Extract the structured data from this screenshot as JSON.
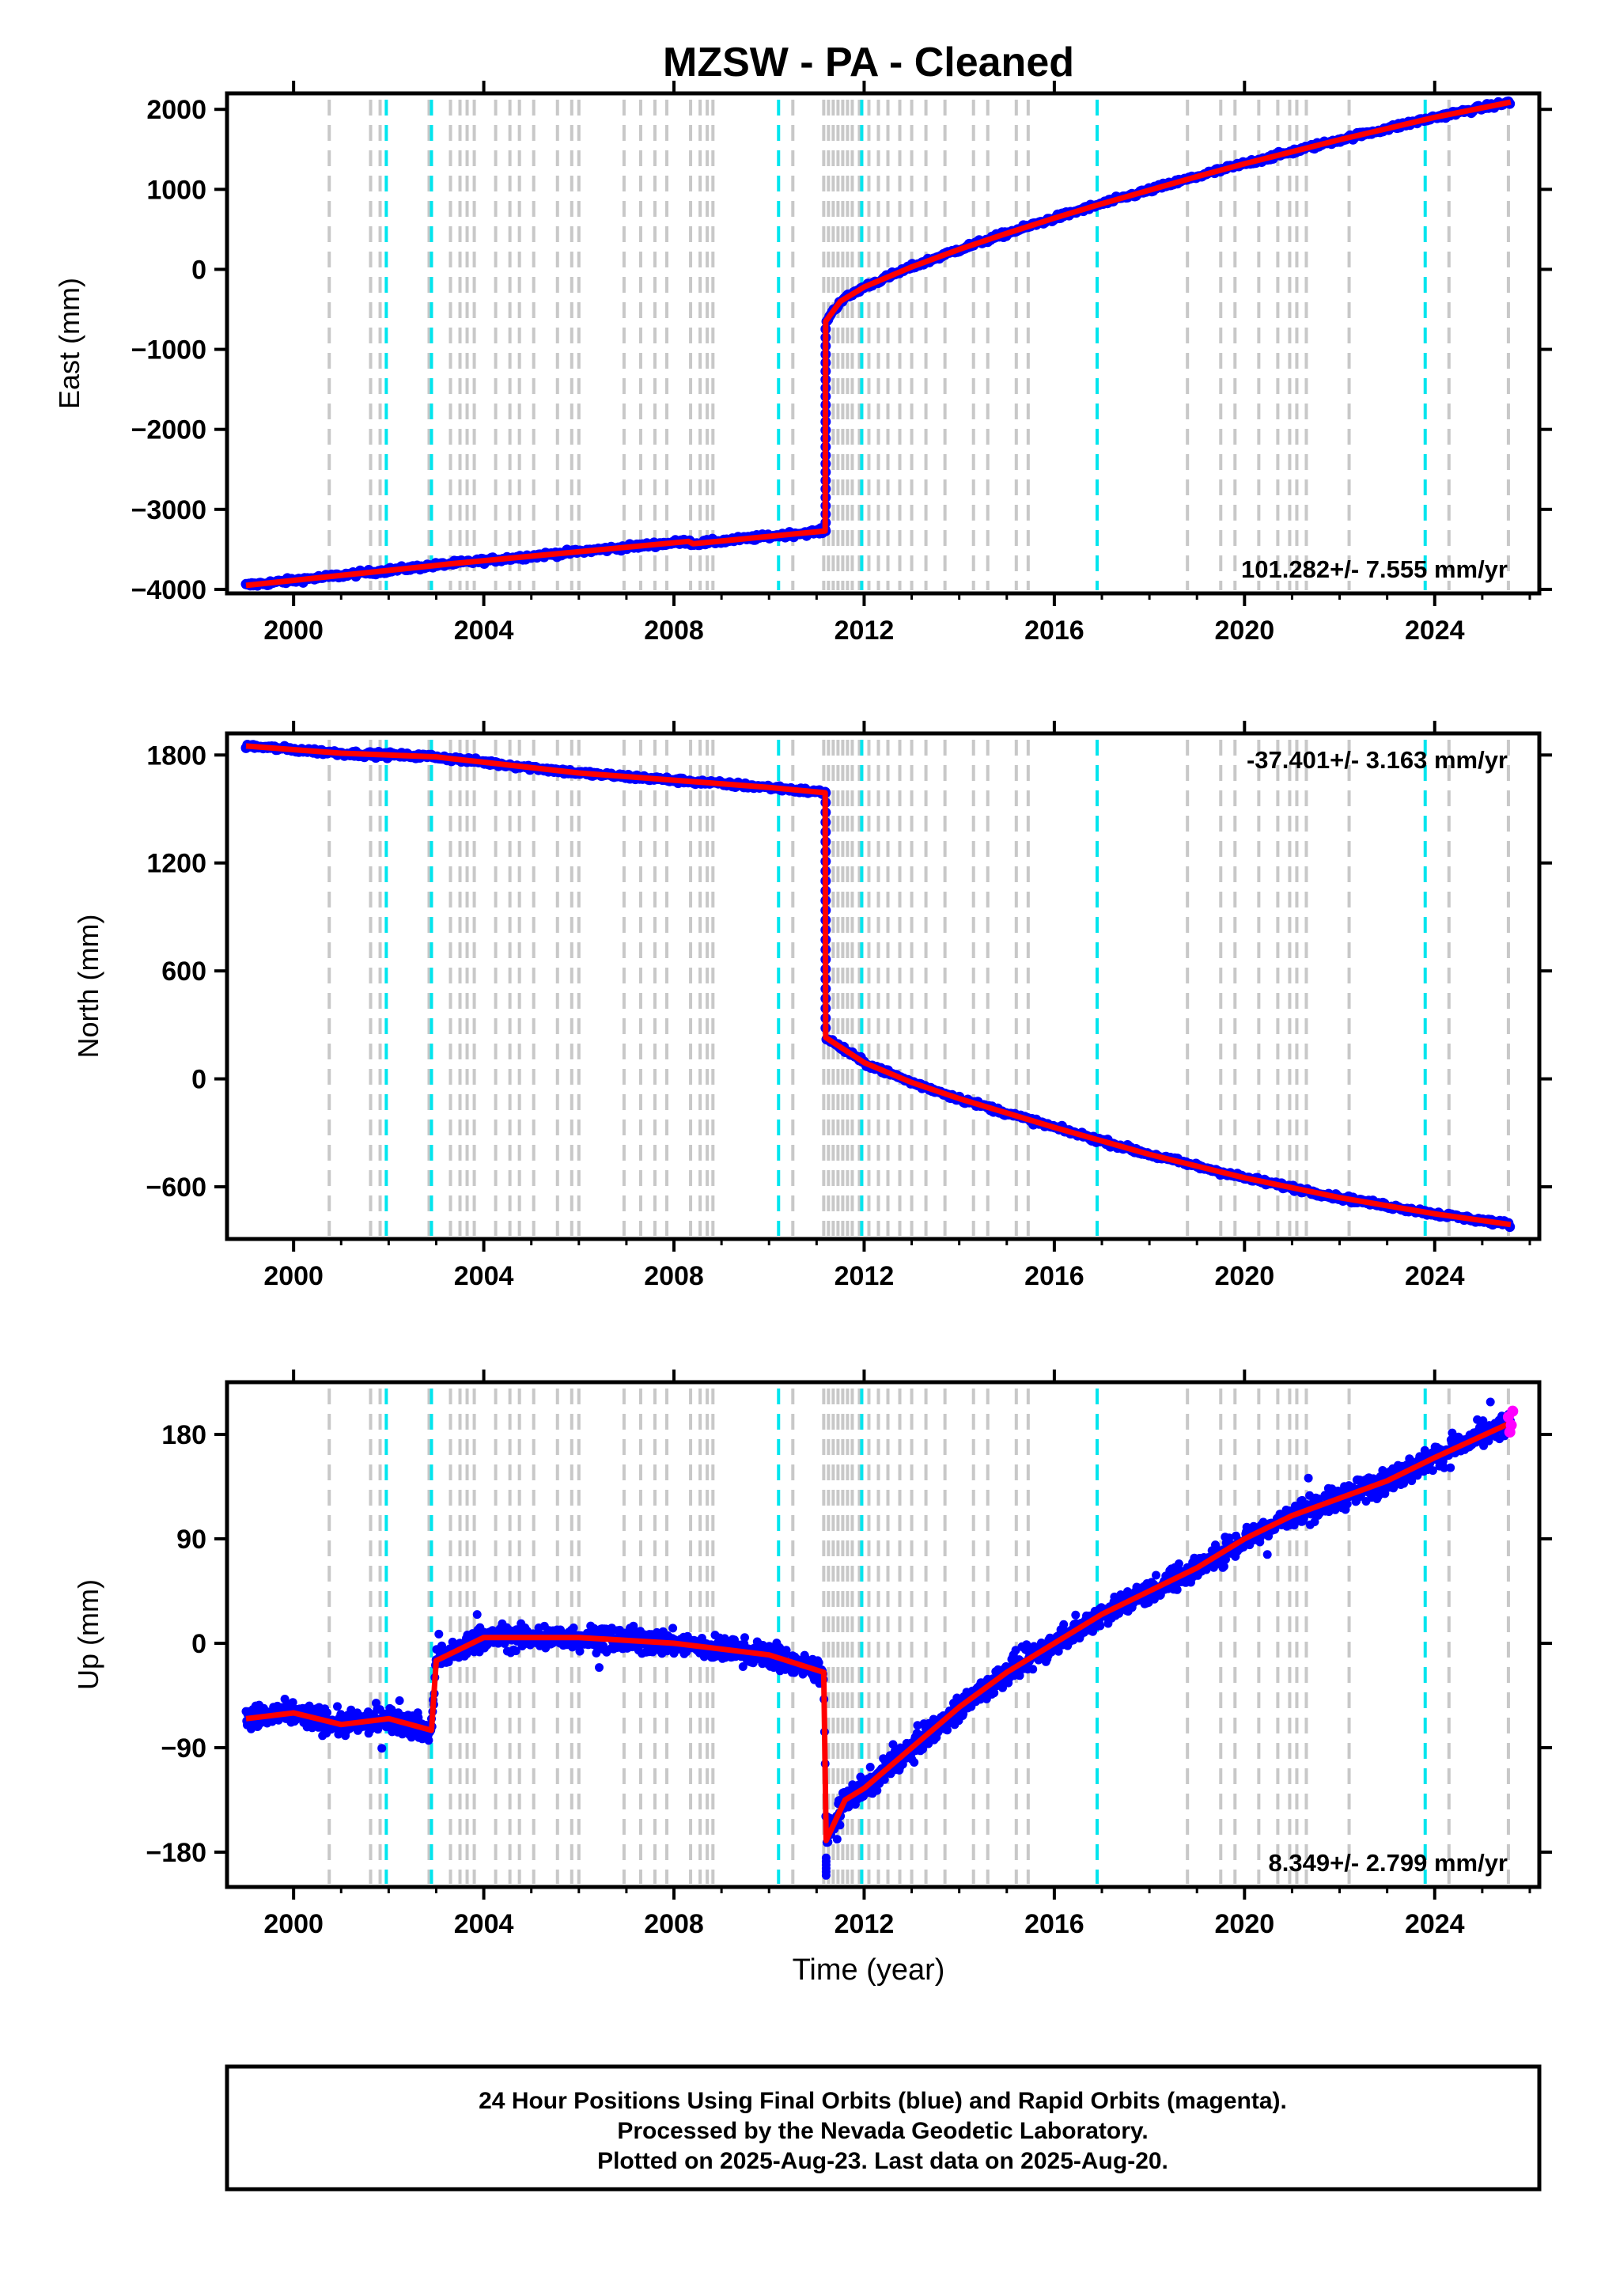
{
  "title": "MZSW  - PA - Cleaned",
  "xlabel": "Time (year)",
  "xlim": [
    1998.6,
    2026.2
  ],
  "x_ticks": [
    2000,
    2004,
    2008,
    2012,
    2016,
    2020,
    2024
  ],
  "x_tick_labels": [
    "2000",
    "2004",
    "2008",
    "2012",
    "2016",
    "2020",
    "2024"
  ],
  "colors": {
    "final_orbits": "#0000ff",
    "rapid_orbits": "#ff00ff",
    "model": "#ff0000",
    "equipment_change": "#c8c8c8",
    "earthquake": "#00e5ee",
    "frame": "#000000"
  },
  "event_lines": {
    "gray": [
      2000.75,
      2001.62,
      2001.82,
      2002.85,
      2003.3,
      2003.5,
      2003.65,
      2003.8,
      2004.25,
      2004.55,
      2004.75,
      2005.05,
      2005.55,
      2005.85,
      2006.0,
      2006.95,
      2007.3,
      2007.6,
      2007.85,
      2008.35,
      2008.55,
      2008.7,
      2008.82,
      2010.5,
      2011.15,
      2011.25,
      2011.35,
      2011.45,
      2011.55,
      2011.65,
      2011.75,
      2011.9,
      2012.1,
      2012.3,
      2012.5,
      2012.75,
      2013.0,
      2013.3,
      2013.7,
      2014.3,
      2014.6,
      2015.2,
      2015.45,
      2018.8,
      2019.5,
      2019.8,
      2020.3,
      2020.7,
      2020.95,
      2021.1,
      2021.3,
      2022.2,
      2024.3,
      2025.55
    ],
    "cyan": [
      2001.95,
      2002.9,
      2010.2,
      2011.95,
      2016.9,
      2023.8
    ]
  },
  "panels": [
    {
      "id": "east",
      "ylabel": "East (mm)",
      "ylim": [
        -4050,
        2200
      ],
      "y_ticks": [
        -4000,
        -3000,
        -2000,
        -1000,
        0,
        1000,
        2000
      ],
      "y_tick_labels": [
        "−4000",
        "−3000",
        "−2000",
        "−1000",
        "0",
        "1000",
        "2000"
      ],
      "rate_text": "101.282+/- 7.555 mm/yr",
      "rate_position": "bottom-right"
    },
    {
      "id": "north",
      "ylabel": "North (mm)",
      "ylim": [
        -890,
        1920
      ],
      "y_ticks": [
        -600,
        0,
        600,
        1200,
        1800
      ],
      "y_tick_labels": [
        "−600",
        "0",
        "600",
        "1200",
        "1800"
      ],
      "rate_text": "-37.401+/- 3.163 mm/yr",
      "rate_position": "top-right"
    },
    {
      "id": "up",
      "ylabel": "Up (mm)",
      "ylim": [
        -210,
        225
      ],
      "y_ticks": [
        -180,
        -90,
        0,
        90,
        180
      ],
      "y_tick_labels": [
        "−180",
        "−90",
        "0",
        "90",
        "180"
      ],
      "rate_text": "8.349+/- 2.799 mm/yr",
      "rate_position": "bottom-right"
    }
  ],
  "chart_data": {
    "type": "scatter",
    "title": "MZSW  - PA - Cleaned",
    "xlabel": "Time (year)",
    "legend": "none",
    "grid": false,
    "series": [
      {
        "panel": "East (mm)",
        "description": "trend model (red)",
        "x": [
          1999.0,
          2003.0,
          2003.3,
          2008.3,
          2008.4,
          2011.18,
          2011.19,
          2011.5,
          2012.0,
          2013.0,
          2014.0,
          2015.0,
          2016.0,
          2017.0,
          2018.0,
          2019.0,
          2020.0,
          2021.0,
          2022.0,
          2023.0,
          2024.0,
          2025.6
        ],
        "y": [
          -3950,
          -3700,
          -3680,
          -3400,
          -3430,
          -3270,
          -650,
          -400,
          -220,
          30,
          250,
          450,
          640,
          820,
          990,
          1160,
          1320,
          1470,
          1620,
          1760,
          1900,
          2090
        ]
      },
      {
        "panel": "North (mm)",
        "description": "trend model (red)",
        "x": [
          1999.0,
          2000.0,
          2001.0,
          2002.0,
          2003.0,
          2003.3,
          2004.0,
          2006.0,
          2008.0,
          2010.0,
          2011.18,
          2011.19,
          2012.0,
          2013.0,
          2014.0,
          2016.0,
          2018.0,
          2020.0,
          2022.0,
          2024.0,
          2025.6
        ],
        "y": [
          1850,
          1830,
          1810,
          1800,
          1790,
          1780,
          1760,
          1700,
          1660,
          1620,
          1590,
          230,
          90,
          -20,
          -110,
          -270,
          -420,
          -550,
          -660,
          -750,
          -810
        ]
      },
      {
        "panel": "Up (mm)",
        "description": "smoothed model (red)",
        "x": [
          1999.0,
          2000.0,
          2001.0,
          2002.0,
          2002.9,
          2003.0,
          2004.0,
          2006.0,
          2008.0,
          2010.0,
          2011.15,
          2011.2,
          2011.6,
          2012.0,
          2013.0,
          2014.0,
          2015.0,
          2016.0,
          2017.0,
          2018.0,
          2019.0,
          2020.0,
          2021.0,
          2022.0,
          2023.0,
          2024.0,
          2025.6
        ],
        "y": [
          -65,
          -60,
          -70,
          -65,
          -75,
          -15,
          5,
          5,
          0,
          -10,
          -25,
          -170,
          -135,
          -125,
          -90,
          -55,
          -25,
          0,
          25,
          45,
          65,
          90,
          110,
          125,
          140,
          160,
          190
        ]
      },
      {
        "panel": "Up (mm)",
        "description": "24 hour positions, final orbits (blue)",
        "x": [
          1999.0,
          2000.0,
          2001.0,
          2002.0,
          2002.9,
          2003.0,
          2004.0,
          2006.0,
          2008.0,
          2010.0,
          2011.15,
          2011.2,
          2011.6,
          2012.0,
          2013.0,
          2014.0,
          2015.0,
          2016.0,
          2017.0,
          2018.0,
          2019.0,
          2020.0,
          2021.0,
          2022.0,
          2023.0,
          2024.0,
          2025.6
        ],
        "y": [
          -65,
          -60,
          -70,
          -65,
          -75,
          -15,
          5,
          5,
          0,
          -10,
          -25,
          -170,
          -135,
          -125,
          -90,
          -55,
          -25,
          0,
          25,
          45,
          65,
          90,
          110,
          125,
          140,
          160,
          190
        ]
      },
      {
        "panel": "Up (mm)",
        "description": "24 hour positions, rapid orbits (magenta)",
        "x": [
          2025.55,
          2025.58,
          2025.61,
          2025.64
        ],
        "y": [
          195,
          182,
          188,
          200
        ]
      }
    ]
  },
  "footer": {
    "line1": "24 Hour Positions Using Final Orbits (blue) and Rapid Orbits (magenta).",
    "line2": "Processed by the Nevada Geodetic Laboratory.",
    "line3": "Plotted on 2025-Aug-23. Last data on 2025-Aug-20."
  }
}
